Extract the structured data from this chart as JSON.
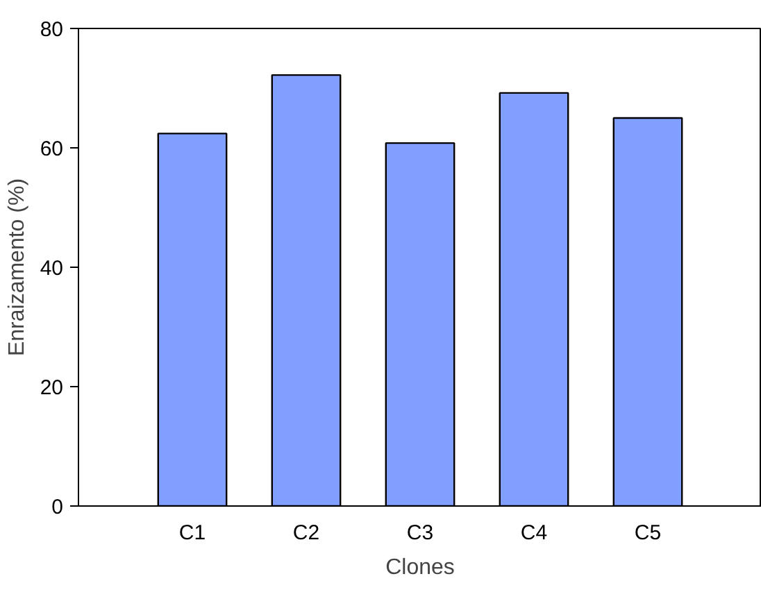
{
  "chart_data": {
    "type": "bar",
    "xlabel": "Clones",
    "ylabel": "Enraizamento (%)",
    "categories": [
      "C1",
      "C2",
      "C3",
      "C4",
      "C5"
    ],
    "values": [
      62.4,
      72.2,
      60.8,
      69.2,
      65.0
    ],
    "color": "#809fff",
    "ylim": [
      0,
      80
    ],
    "yticks": [
      0,
      20,
      40,
      60,
      80
    ],
    "grid": false
  }
}
